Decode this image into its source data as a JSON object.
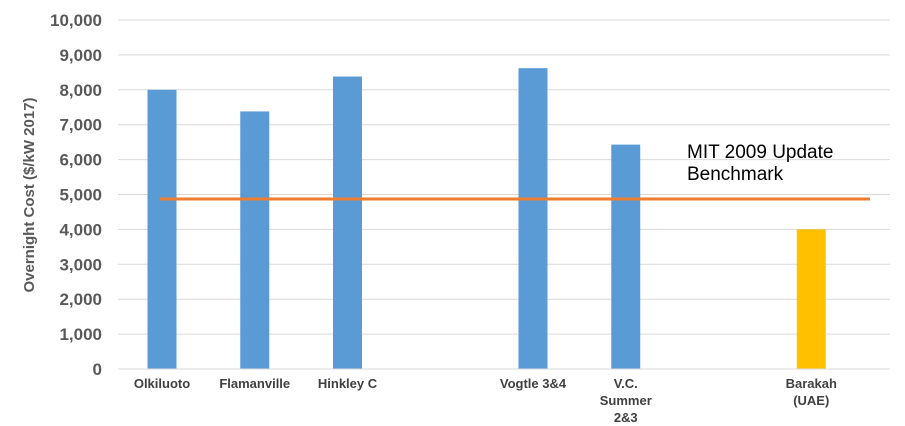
{
  "chart_data": {
    "type": "bar",
    "categories": [
      [
        "Olkiluoto"
      ],
      [
        "Flamanville"
      ],
      [
        "Hinkley C"
      ],
      [
        ""
      ],
      [
        "Vogtle 3&4"
      ],
      [
        "V.C.",
        "Summer",
        "2&3"
      ],
      [
        ""
      ],
      [
        "Barakah",
        "(UAE)"
      ]
    ],
    "values": [
      8000,
      7380,
      8380,
      null,
      8620,
      6430,
      null,
      4000
    ],
    "bar_colors": [
      "#5b9bd5",
      "#5b9bd5",
      "#5b9bd5",
      null,
      "#5b9bd5",
      "#5b9bd5",
      null,
      "#ffc000"
    ],
    "ylabel": "Overnight Cost ($/kW 2017)",
    "ylim": [
      0,
      10000
    ],
    "yticks": [
      0,
      1000,
      2000,
      3000,
      4000,
      5000,
      6000,
      7000,
      8000,
      9000,
      10000
    ],
    "ytick_labels": [
      "0",
      "1,000",
      "2,000",
      "3,000",
      "4,000",
      "5,000",
      "6,000",
      "7,000",
      "8,000",
      "9,000",
      "10,000"
    ],
    "grid": true,
    "benchmark": {
      "value": 4870,
      "color": "#ed7d31",
      "label_lines": [
        "MIT 2009 Update",
        "Benchmark"
      ]
    }
  }
}
